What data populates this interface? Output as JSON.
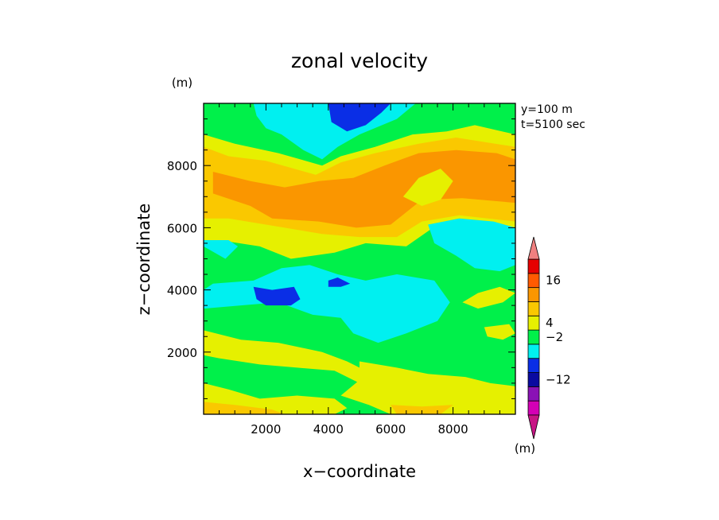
{
  "chart_data": {
    "type": "heatmap",
    "title": "zonal velocity",
    "xlabel": "x−coordinate",
    "ylabel": "z−coordinate",
    "x_unit": "(m)",
    "y_unit": "(m)",
    "xlim": [
      0,
      10000
    ],
    "ylim": [
      0,
      10000
    ],
    "xticks": [
      {
        "value": 2000,
        "label": "2000"
      },
      {
        "value": 4000,
        "label": "4000"
      },
      {
        "value": 6000,
        "label": "6000"
      },
      {
        "value": 8000,
        "label": "8000"
      }
    ],
    "yticks": [
      {
        "value": 2000,
        "label": "2000"
      },
      {
        "value": 4000,
        "label": "4000"
      },
      {
        "value": 6000,
        "label": "6000"
      },
      {
        "value": 8000,
        "label": "8000"
      }
    ],
    "annotations": [
      "y=100 m",
      "t=5100 sec"
    ],
    "colorbar": {
      "unit": "(m)",
      "labels": [
        {
          "text": "16",
          "level": 7
        },
        {
          "text": "4",
          "level": 4
        },
        {
          "text": "−2",
          "level": 3
        },
        {
          "text": "−12",
          "level": 0
        }
      ],
      "bands": [
        {
          "level": -3,
          "color": "#c71585"
        },
        {
          "level": -2,
          "color": "#d400b5"
        },
        {
          "level": -1,
          "color": "#8a12b5"
        },
        {
          "level": 0,
          "color": "#0a0aa0"
        },
        {
          "level": 1,
          "color": "#0a2ee6"
        },
        {
          "level": 2,
          "color": "#00f0f0"
        },
        {
          "level": 3,
          "color": "#00f04a"
        },
        {
          "level": 4,
          "color": "#e6f000"
        },
        {
          "level": 5,
          "color": "#fac800"
        },
        {
          "level": 6,
          "color": "#fa9600"
        },
        {
          "level": 7,
          "color": "#ff5a00"
        },
        {
          "level": 8,
          "color": "#e60000"
        },
        {
          "level": 9,
          "color": "#f08080"
        }
      ]
    },
    "regions": [
      {
        "name": "green-background",
        "color": "#00f04a",
        "points": [
          [
            0,
            0
          ],
          [
            10000,
            0
          ],
          [
            10000,
            10000
          ],
          [
            0,
            10000
          ]
        ]
      },
      {
        "name": "yellow-top-band",
        "color": "#e6f000",
        "points": [
          [
            0,
            9000
          ],
          [
            1000,
            8700
          ],
          [
            2400,
            8400
          ],
          [
            3800,
            8000
          ],
          [
            4400,
            8300
          ],
          [
            5500,
            8600
          ],
          [
            6700,
            9000
          ],
          [
            7800,
            9100
          ],
          [
            8700,
            9300
          ],
          [
            10000,
            9000
          ],
          [
            10000,
            5800
          ],
          [
            9000,
            5950
          ],
          [
            7500,
            6100
          ],
          [
            6500,
            5400
          ],
          [
            5200,
            5500
          ],
          [
            4200,
            5200
          ],
          [
            2800,
            5000
          ],
          [
            1800,
            5400
          ],
          [
            500,
            5600
          ],
          [
            0,
            5500
          ]
        ]
      },
      {
        "name": "orange-light-band",
        "color": "#fac800",
        "points": [
          [
            0,
            8600
          ],
          [
            800,
            8300
          ],
          [
            2000,
            8150
          ],
          [
            3600,
            7700
          ],
          [
            4400,
            8100
          ],
          [
            5500,
            8400
          ],
          [
            6900,
            8700
          ],
          [
            8100,
            8900
          ],
          [
            10000,
            8600
          ],
          [
            10000,
            6200
          ],
          [
            8200,
            6400
          ],
          [
            7000,
            6200
          ],
          [
            6200,
            5700
          ],
          [
            5000,
            5700
          ],
          [
            3800,
            5800
          ],
          [
            2600,
            6000
          ],
          [
            800,
            6300
          ],
          [
            0,
            6300
          ]
        ]
      },
      {
        "name": "orange-core",
        "color": "#fa9600",
        "points": [
          [
            300,
            7800
          ],
          [
            1500,
            7500
          ],
          [
            2600,
            7300
          ],
          [
            3700,
            7500
          ],
          [
            4800,
            7600
          ],
          [
            5800,
            8000
          ],
          [
            6900,
            8400
          ],
          [
            8100,
            8500
          ],
          [
            9400,
            8400
          ],
          [
            10000,
            8200
          ],
          [
            10000,
            6800
          ],
          [
            8300,
            6950
          ],
          [
            7000,
            6900
          ],
          [
            6500,
            6500
          ],
          [
            6000,
            6100
          ],
          [
            4900,
            6000
          ],
          [
            3700,
            6200
          ],
          [
            2200,
            6300
          ],
          [
            1500,
            6700
          ],
          [
            300,
            7100
          ]
        ]
      },
      {
        "name": "yellow-spot-upper-right",
        "color": "#e6f000",
        "points": [
          [
            6400,
            7000
          ],
          [
            6900,
            7600
          ],
          [
            7600,
            7900
          ],
          [
            8000,
            7500
          ],
          [
            7600,
            6900
          ],
          [
            7000,
            6700
          ]
        ]
      },
      {
        "name": "cyan-top-left",
        "color": "#00f0f0",
        "points": [
          [
            1600,
            10000
          ],
          [
            1700,
            9600
          ],
          [
            2000,
            9200
          ],
          [
            2500,
            9000
          ],
          [
            3200,
            8500
          ],
          [
            3800,
            8200
          ],
          [
            4300,
            8600
          ],
          [
            5000,
            9000
          ],
          [
            6200,
            9500
          ],
          [
            6800,
            10000
          ]
        ]
      },
      {
        "name": "blue-top",
        "color": "#0a2ee6",
        "points": [
          [
            4000,
            10000
          ],
          [
            4100,
            9400
          ],
          [
            4600,
            9100
          ],
          [
            5200,
            9300
          ],
          [
            5700,
            9700
          ],
          [
            6000,
            10000
          ]
        ]
      },
      {
        "name": "cyan-right",
        "color": "#00f0f0",
        "points": [
          [
            7200,
            6100
          ],
          [
            8200,
            6300
          ],
          [
            9300,
            6200
          ],
          [
            10000,
            6000
          ],
          [
            10000,
            4800
          ],
          [
            9500,
            4600
          ],
          [
            8700,
            4700
          ],
          [
            8100,
            5100
          ],
          [
            7400,
            5500
          ]
        ]
      },
      {
        "name": "cyan-left-upper",
        "color": "#00f0f0",
        "points": [
          [
            0,
            5400
          ],
          [
            700,
            5000
          ],
          [
            1100,
            5400
          ],
          [
            800,
            5600
          ],
          [
            0,
            5600
          ]
        ]
      },
      {
        "name": "cyan-middle",
        "color": "#00f0f0",
        "points": [
          [
            300,
            4200
          ],
          [
            1600,
            4300
          ],
          [
            2500,
            4700
          ],
          [
            3400,
            4800
          ],
          [
            4300,
            4500
          ],
          [
            5200,
            4300
          ],
          [
            6200,
            4500
          ],
          [
            7400,
            4300
          ],
          [
            7900,
            3600
          ],
          [
            7500,
            3000
          ],
          [
            6500,
            2600
          ],
          [
            5600,
            2300
          ],
          [
            4800,
            2600
          ],
          [
            4400,
            3100
          ],
          [
            3500,
            3200
          ],
          [
            2400,
            3600
          ],
          [
            1200,
            3500
          ],
          [
            0,
            3400
          ],
          [
            0,
            4000
          ]
        ]
      },
      {
        "name": "blue-left-spot",
        "color": "#0a2ee6",
        "points": [
          [
            1600,
            4100
          ],
          [
            2200,
            4000
          ],
          [
            2900,
            4100
          ],
          [
            3100,
            3700
          ],
          [
            2800,
            3500
          ],
          [
            2000,
            3500
          ],
          [
            1700,
            3700
          ]
        ]
      },
      {
        "name": "blue-center-spot",
        "color": "#0a2ee6",
        "points": [
          [
            4000,
            4300
          ],
          [
            4300,
            4400
          ],
          [
            4700,
            4200
          ],
          [
            4400,
            4100
          ],
          [
            4000,
            4100
          ]
        ]
      },
      {
        "name": "yellow-small-right",
        "color": "#e6f000",
        "points": [
          [
            8300,
            3600
          ],
          [
            8800,
            3900
          ],
          [
            9500,
            4100
          ],
          [
            10000,
            3900
          ],
          [
            9600,
            3600
          ],
          [
            8800,
            3400
          ]
        ]
      },
      {
        "name": "yellow-lower-left",
        "color": "#e6f000",
        "points": [
          [
            0,
            2700
          ],
          [
            1200,
            2400
          ],
          [
            2400,
            2300
          ],
          [
            3800,
            2000
          ],
          [
            4600,
            1700
          ],
          [
            5200,
            1400
          ],
          [
            5000,
            1000
          ],
          [
            4200,
            1400
          ],
          [
            3000,
            1500
          ],
          [
            1800,
            1600
          ],
          [
            500,
            1800
          ],
          [
            0,
            1900
          ]
        ]
      },
      {
        "name": "yellow-lower-right",
        "color": "#e6f000",
        "points": [
          [
            5000,
            1700
          ],
          [
            6200,
            1500
          ],
          [
            7200,
            1300
          ],
          [
            8400,
            1200
          ],
          [
            9200,
            1000
          ],
          [
            10000,
            900
          ],
          [
            10000,
            0
          ],
          [
            6000,
            0
          ],
          [
            5300,
            300
          ],
          [
            4400,
            600
          ],
          [
            5000,
            1100
          ]
        ]
      },
      {
        "name": "yellow-bottom-left",
        "color": "#e6f000",
        "points": [
          [
            0,
            1000
          ],
          [
            800,
            800
          ],
          [
            1800,
            500
          ],
          [
            3000,
            600
          ],
          [
            4200,
            500
          ],
          [
            4600,
            200
          ],
          [
            4200,
            0
          ],
          [
            0,
            0
          ]
        ]
      },
      {
        "name": "orange-bottom-left",
        "color": "#fac800",
        "points": [
          [
            0,
            400
          ],
          [
            1000,
            300
          ],
          [
            2200,
            150
          ],
          [
            2600,
            0
          ],
          [
            0,
            0
          ]
        ]
      },
      {
        "name": "orange-bottom-right",
        "color": "#fac800",
        "points": [
          [
            6000,
            300
          ],
          [
            7000,
            250
          ],
          [
            8000,
            300
          ],
          [
            7600,
            0
          ],
          [
            6200,
            0
          ]
        ]
      },
      {
        "name": "yellow-right-edge",
        "color": "#e6f000",
        "points": [
          [
            9000,
            2800
          ],
          [
            9800,
            2900
          ],
          [
            10000,
            2600
          ],
          [
            9600,
            2400
          ],
          [
            9100,
            2500
          ]
        ]
      }
    ]
  }
}
